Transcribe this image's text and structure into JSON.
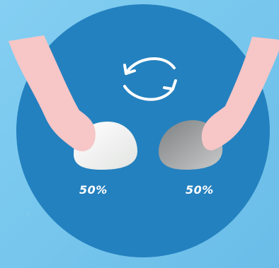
{
  "labels": {
    "left_percent": "50%",
    "right_percent": "50%"
  },
  "icons": {
    "swap": "swap-arrows-icon"
  },
  "colors": {
    "background": "#7dc9ee",
    "circle": "#2481bf",
    "hand": "#f7c6c6",
    "left_stone": "#eef0ee",
    "right_stone": "#a4a6a6",
    "arrow": "#ffffff"
  }
}
